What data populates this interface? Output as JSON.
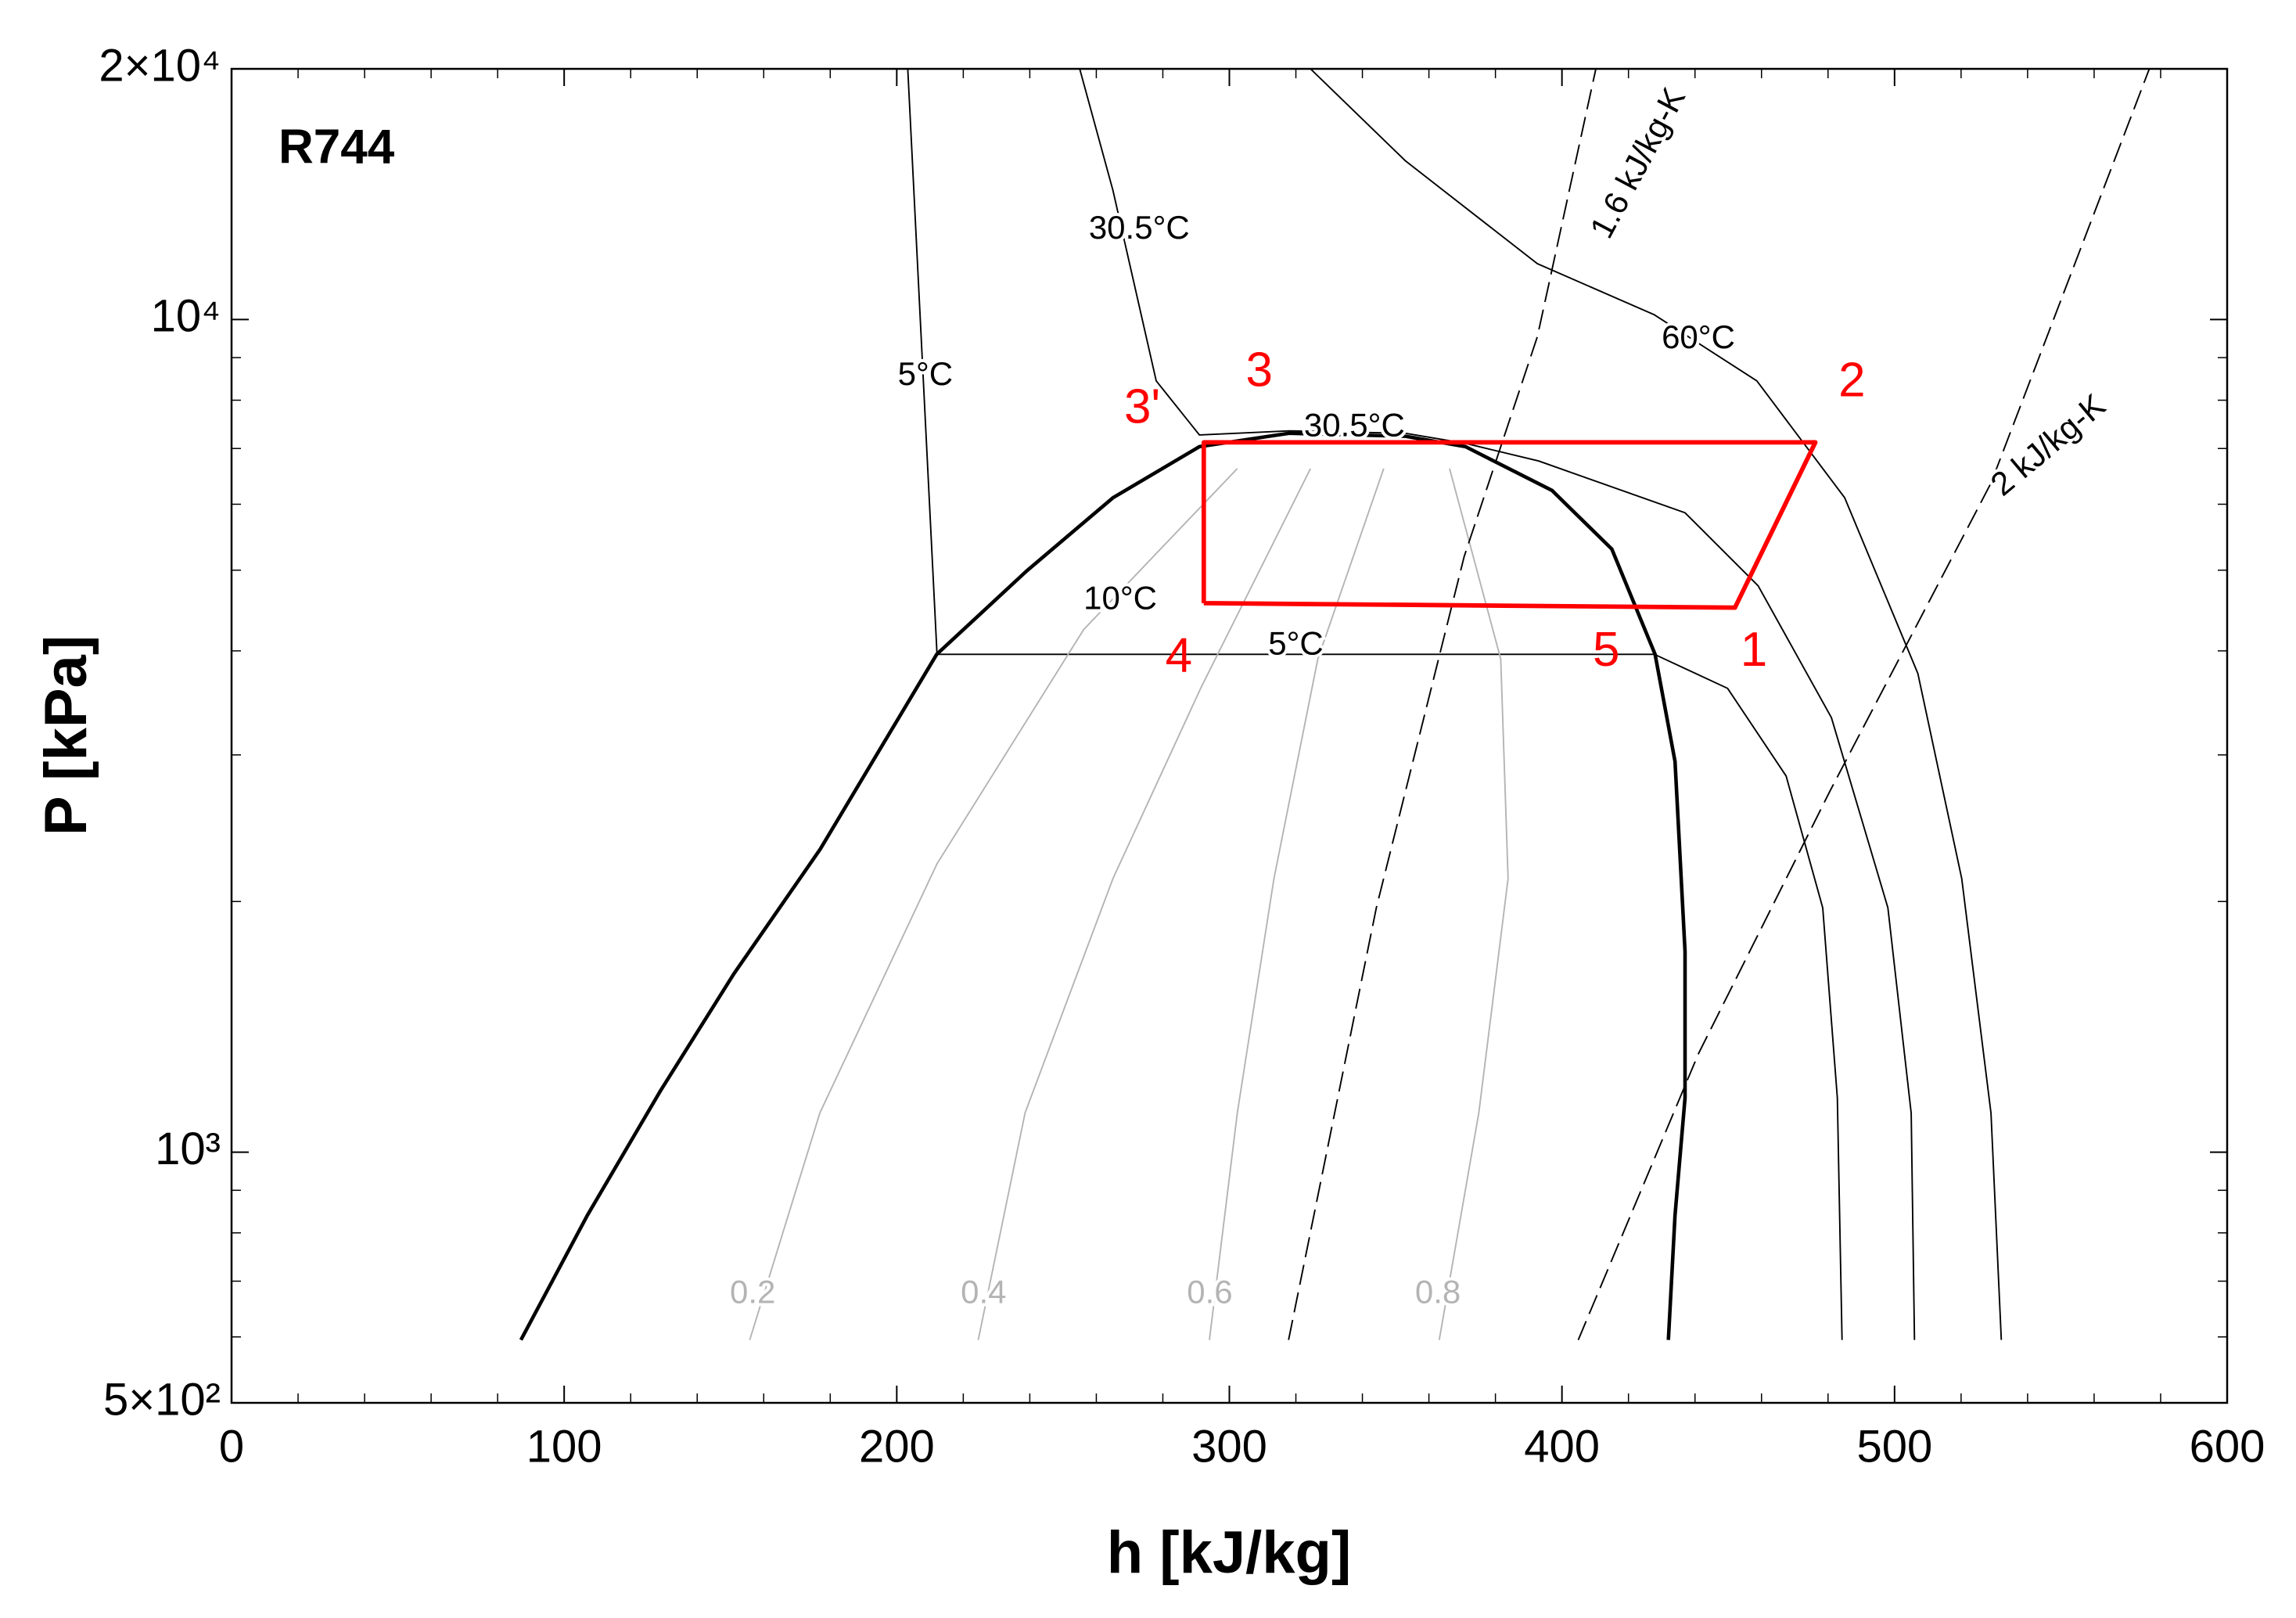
{
  "chart_data": {
    "type": "line",
    "title": "R744",
    "xlabel": "h [kJ/kg]",
    "ylabel": "P [kPa]",
    "xlim": [
      0,
      600
    ],
    "ylim": [
      500,
      20000
    ],
    "yscale": "log",
    "grid": false,
    "xticks": [
      0,
      100,
      200,
      300,
      400,
      500,
      600
    ],
    "yticks": [
      {
        "value": 500,
        "label": "5×10²"
      },
      {
        "value": 1000,
        "label": "10³"
      },
      {
        "value": 10000,
        "label": "10⁴"
      },
      {
        "value": 20000,
        "label": "2×10⁴"
      }
    ],
    "xminorticks": [
      20,
      40,
      60,
      80,
      120,
      140,
      160,
      180,
      220,
      240,
      260,
      280,
      320,
      340,
      360,
      380,
      420,
      440,
      460,
      480,
      520,
      540,
      560,
      580
    ],
    "yminorticks": [
      600,
      700,
      800,
      900,
      2000,
      3000,
      4000,
      5000,
      6000,
      7000,
      8000,
      9000
    ],
    "series": [
      {
        "color": "#000000",
        "linewidth": 2.4,
        "dash": false,
        "x": [
          87,
          107,
          129,
          151,
          177,
          212,
          239,
          265,
          291,
          318,
          353,
          371,
          397,
          415,
          428,
          434,
          437,
          437,
          434,
          432
        ],
        "values": [
          595,
          840,
          1186,
          1637,
          2312,
          3962,
          4986,
          6108,
          7036,
          7300,
          7240,
          7036,
          6234,
          5300,
          3962,
          2946,
          1742,
          1162,
          840,
          595
        ]
      },
      {
        "color": "#000000",
        "linewidth": 1,
        "dash": false,
        "x": [
          203.3,
          212.1,
          427.8,
          449.8,
          467.4,
          478.4,
          482.8,
          484.2
        ],
        "values": [
          20000,
          3962,
          3962,
          3606,
          2830,
          1966,
          1162,
          595
        ]
      },
      {
        "color": "#000000",
        "linewidth": 1,
        "dash": false,
        "x": [
          255,
          265,
          278,
          291,
          318,
          353,
          371,
          393,
          437,
          459,
          481,
          498,
          505,
          506
        ],
        "values": [
          20000,
          14290,
          8440,
          7268,
          7350,
          7300,
          7100,
          6762,
          5860,
          4788,
          3326,
          1966,
          1114,
          595
        ]
      },
      {
        "color": "#000000",
        "linewidth": 1,
        "dash": false,
        "x": [
          324.4,
          353,
          392.6,
          427.8,
          458.6,
          485,
          507,
          520.2,
          529,
          532.1
        ],
        "values": [
          20000,
          15500,
          11670,
          10130,
          8440,
          6108,
          3758,
          2131,
          1114,
          595
        ]
      },
      {
        "color": "#b4b4b4",
        "linewidth": 1,
        "dash": false,
        "x": [
          155.8,
          176.9,
          212.1,
          256.2,
          302.4
        ],
        "values": [
          595,
          1115,
          2220,
          4243,
          6622
        ]
      },
      {
        "color": "#b4b4b4",
        "linewidth": 1,
        "dash": false,
        "x": [
          224.5,
          238.6,
          265,
          291.4,
          324.4
        ],
        "values": [
          595,
          1115,
          2131,
          3608,
          6622
        ]
      },
      {
        "color": "#b4b4b4",
        "linewidth": 1,
        "dash": false,
        "x": [
          294,
          302.4,
          313.4,
          326.6,
          346.4
        ],
        "values": [
          595,
          1115,
          2131,
          3912,
          6622
        ]
      },
      {
        "color": "#b4b4b4",
        "linewidth": 1,
        "dash": false,
        "x": [
          363.1,
          375,
          383.8,
          381.6,
          366.2
        ],
        "values": [
          595,
          1115,
          2131,
          3912,
          6622
        ]
      },
      {
        "color": "#000000",
        "linewidth": 1,
        "dash": true,
        "x": [
          317.8,
          344.2,
          370.6,
          392.6,
          410.2
        ],
        "values": [
          595,
          1966,
          5194,
          9534,
          20000
        ]
      },
      {
        "color": "#000000",
        "linewidth": 1,
        "dash": true,
        "x": [
          404.9,
          441,
          480.6,
          529,
          576.6
        ],
        "values": [
          595,
          1312,
          2716,
          6360,
          20000
        ]
      },
      {
        "color": "#ff0000",
        "linewidth": 3,
        "dash": false,
        "x": [
          292.3,
          292.3,
          476.2,
          452,
          292.3
        ],
        "values": [
          4564,
          7120,
          7120,
          4508,
          4564
        ]
      }
    ],
    "annotations": [
      {
        "text": "5°C",
        "x": 208.6,
        "y": 8546,
        "color": "#000000"
      },
      {
        "text": "30.5°C",
        "x": 272.9,
        "y": 12810,
        "color": "#000000"
      },
      {
        "text": "30.5°C",
        "x": 337.6,
        "y": 7418,
        "color": "#000000"
      },
      {
        "text": "60°C",
        "x": 441,
        "y": 9458,
        "color": "#000000"
      },
      {
        "text": "10°C",
        "x": 267.2,
        "y": 4600,
        "color": "#000000"
      },
      {
        "text": "5°C",
        "x": 320,
        "y": 4058,
        "color": "#000000"
      },
      {
        "text": "1.6 kJ/kg-K",
        "x": 423.4,
        "y": 15370,
        "color": "#000000"
      },
      {
        "text": "2 kJ/kg-K",
        "x": 546.6,
        "y": 7036,
        "color": "#000000"
      },
      {
        "text": "0.2",
        "x": 156.7,
        "y": 675,
        "color": "#b4b4b4"
      },
      {
        "text": "0.4",
        "x": 226.1,
        "y": 675,
        "color": "#b4b4b4"
      },
      {
        "text": "0.6",
        "x": 294.1,
        "y": 675,
        "color": "#b4b4b4"
      },
      {
        "text": "0.8",
        "x": 362.7,
        "y": 675,
        "color": "#b4b4b4"
      },
      {
        "text": "3'",
        "x": 273.8,
        "y": 7788,
        "color": "#ff0000"
      },
      {
        "text": "3",
        "x": 309,
        "y": 8618,
        "color": "#ff0000"
      },
      {
        "text": "2",
        "x": 487.2,
        "y": 8376,
        "color": "#ff0000"
      },
      {
        "text": "1",
        "x": 457.7,
        "y": 3976,
        "color": "#ff0000"
      },
      {
        "text": "4",
        "x": 284.8,
        "y": 3912,
        "color": "#ff0000"
      },
      {
        "text": "5",
        "x": 413.3,
        "y": 3976,
        "color": "#ff0000"
      }
    ]
  }
}
